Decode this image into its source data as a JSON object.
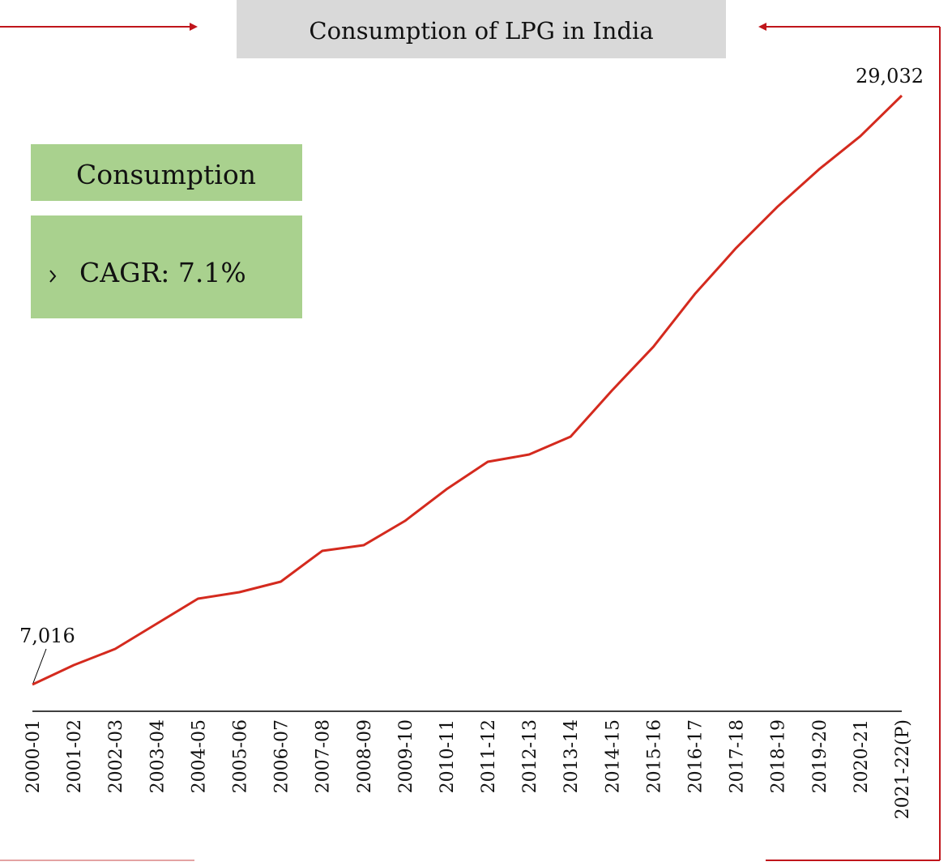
{
  "chart_data": {
    "type": "line",
    "title": "Consumption of LPG in India",
    "callout": {
      "heading": "Consumption",
      "items": [
        "CAGR: 7.1%"
      ]
    },
    "categories": [
      "2000-01",
      "2001-02",
      "2002-03",
      "2003-04",
      "2004-05",
      "2005-06",
      "2006-07",
      "2007-08",
      "2008-09",
      "2009-10",
      "2010-11",
      "2011-12",
      "2012-13",
      "2013-14",
      "2014-15",
      "2015-16",
      "2016-17",
      "2017-18",
      "2018-19",
      "2019-20",
      "2020-21",
      "2021-22(P)"
    ],
    "values": [
      7016,
      7743,
      8348,
      9287,
      10226,
      10468,
      10862,
      12012,
      12224,
      13133,
      14314,
      15343,
      15616,
      16282,
      18008,
      19643,
      21611,
      23337,
      24881,
      26274,
      27516,
      29032
    ],
    "value_labels": [
      "7,016",
      null,
      null,
      null,
      null,
      null,
      null,
      null,
      null,
      null,
      null,
      null,
      null,
      null,
      null,
      null,
      null,
      null,
      null,
      null,
      null,
      "29,032"
    ],
    "color": "#d42a1e"
  }
}
